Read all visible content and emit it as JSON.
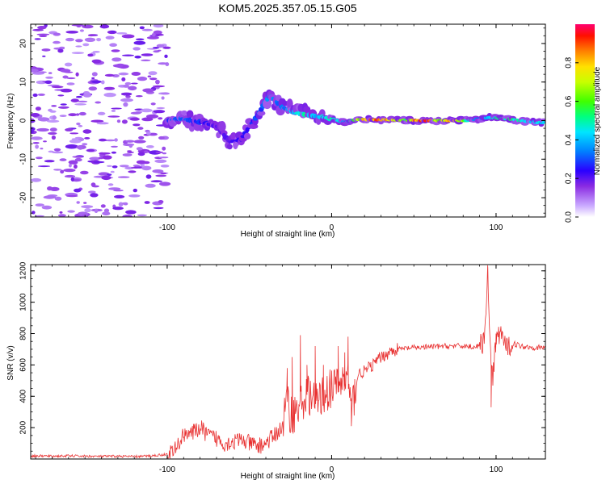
{
  "title": "KOM5.2025.357.05.15.G05",
  "chart_data": [
    {
      "type": "heatmap",
      "title": "KOM5.2025.357.05.15.G05",
      "xlabel": "Height of straight line (km)",
      "ylabel": "Frequency (Hz)",
      "xlim": [
        -183,
        130
      ],
      "ylim": [
        -25,
        25
      ],
      "x_ticks": [
        -100,
        0,
        100
      ],
      "x_tick_labels": [
        "-100",
        "0",
        "100"
      ],
      "y_ticks": [
        -20,
        -10,
        0,
        10,
        20
      ],
      "y_tick_labels": [
        "-20",
        "-10",
        "0",
        "10",
        "20"
      ],
      "colorbar": {
        "label": "Normalized spectral amplitude",
        "range": [
          0,
          1
        ],
        "ticks": [
          0,
          0.2,
          0.4,
          0.6,
          0.8
        ],
        "tick_labels": [
          "0.0",
          "0.2",
          "0.4",
          "0.6",
          "0.8"
        ]
      },
      "ridge": [
        {
          "x": -100,
          "y": 0.0,
          "amp": 0.3
        },
        {
          "x": -92,
          "y": 0.5,
          "amp": 0.35
        },
        {
          "x": -85,
          "y": 0.0,
          "amp": 0.3
        },
        {
          "x": -78,
          "y": -0.5,
          "amp": 0.28
        },
        {
          "x": -70,
          "y": -1.5,
          "amp": 0.22
        },
        {
          "x": -62,
          "y": -5.5,
          "amp": 0.2
        },
        {
          "x": -55,
          "y": -5.0,
          "amp": 0.24
        },
        {
          "x": -50,
          "y": -1.5,
          "amp": 0.28
        },
        {
          "x": -44,
          "y": 2.0,
          "amp": 0.3
        },
        {
          "x": -38,
          "y": 6.5,
          "amp": 0.38
        },
        {
          "x": -30,
          "y": 3.5,
          "amp": 0.35
        },
        {
          "x": -22,
          "y": 2.0,
          "amp": 0.45
        },
        {
          "x": -15,
          "y": 1.5,
          "amp": 0.5
        },
        {
          "x": -8,
          "y": 1.0,
          "amp": 0.4
        },
        {
          "x": 0,
          "y": 0.5,
          "amp": 0.55
        },
        {
          "x": 8,
          "y": -0.5,
          "amp": 0.35
        },
        {
          "x": 15,
          "y": 0.3,
          "amp": 0.65
        },
        {
          "x": 25,
          "y": 0.2,
          "amp": 0.95
        },
        {
          "x": 35,
          "y": 0.2,
          "amp": 0.8
        },
        {
          "x": 45,
          "y": 0.1,
          "amp": 0.6
        },
        {
          "x": 52,
          "y": 0.0,
          "amp": 0.9
        },
        {
          "x": 58,
          "y": 0.0,
          "amp": 0.95
        },
        {
          "x": 65,
          "y": 0.0,
          "amp": 0.65
        },
        {
          "x": 74,
          "y": 0.0,
          "amp": 0.95
        },
        {
          "x": 82,
          "y": 0.0,
          "amp": 0.55
        },
        {
          "x": 90,
          "y": 0.5,
          "amp": 0.3
        },
        {
          "x": 96,
          "y": 0.8,
          "amp": 0.45
        },
        {
          "x": 105,
          "y": 0.5,
          "amp": 0.55
        },
        {
          "x": 115,
          "y": 0.0,
          "amp": 0.5
        },
        {
          "x": 125,
          "y": -0.5,
          "amp": 0.45
        },
        {
          "x": 130,
          "y": -0.5,
          "amp": 0.4
        }
      ]
    },
    {
      "type": "line",
      "xlabel": "Height of straight line (km)",
      "ylabel": "SNR (v/v)",
      "xlim": [
        -183,
        130
      ],
      "ylim": [
        0,
        1240
      ],
      "x_ticks": [
        -100,
        0,
        100
      ],
      "x_tick_labels": [
        "-100",
        "0",
        "100"
      ],
      "y_ticks": [
        200,
        400,
        600,
        800,
        1000,
        1200
      ],
      "y_tick_labels": [
        "200",
        "400",
        "600",
        "800",
        "1000",
        "1200"
      ],
      "series": [
        {
          "name": "SNR",
          "color": "#e83030",
          "points": [
            [
              -183,
              20
            ],
            [
              -170,
              18
            ],
            [
              -160,
              20
            ],
            [
              -150,
              18
            ],
            [
              -140,
              16
            ],
            [
              -130,
              18
            ],
            [
              -120,
              15
            ],
            [
              -110,
              20
            ],
            [
              -100,
              30
            ],
            [
              -95,
              60
            ],
            [
              -92,
              120
            ],
            [
              -88,
              180
            ],
            [
              -85,
              160
            ],
            [
              -80,
              200
            ],
            [
              -75,
              150
            ],
            [
              -70,
              130
            ],
            [
              -65,
              100
            ],
            [
              -60,
              110
            ],
            [
              -55,
              120
            ],
            [
              -50,
              100
            ],
            [
              -45,
              80
            ],
            [
              -40,
              100
            ],
            [
              -35,
              150
            ],
            [
              -30,
              200
            ],
            [
              -27,
              380
            ],
            [
              -25,
              280
            ],
            [
              -22,
              300
            ],
            [
              -18,
              360
            ],
            [
              -14,
              420
            ],
            [
              -10,
              350
            ],
            [
              -6,
              400
            ],
            [
              -2,
              440
            ],
            [
              2,
              460
            ],
            [
              6,
              490
            ],
            [
              10,
              520
            ],
            [
              12,
              300
            ],
            [
              16,
              540
            ],
            [
              20,
              560
            ],
            [
              25,
              600
            ],
            [
              30,
              650
            ],
            [
              35,
              680
            ],
            [
              40,
              700
            ],
            [
              50,
              710
            ],
            [
              60,
              715
            ],
            [
              70,
              720
            ],
            [
              80,
              720
            ],
            [
              88,
              715
            ],
            [
              92,
              740
            ],
            [
              94,
              900
            ],
            [
              95,
              1220
            ],
            [
              96,
              800
            ],
            [
              97,
              600
            ],
            [
              98,
              500
            ],
            [
              100,
              750
            ],
            [
              103,
              820
            ],
            [
              106,
              700
            ],
            [
              110,
              740
            ],
            [
              115,
              720
            ],
            [
              120,
              715
            ],
            [
              125,
              710
            ],
            [
              130,
              710
            ]
          ],
          "spikes": [
            [
              -27,
              580
            ],
            [
              -24,
              650
            ],
            [
              -19,
              790
            ],
            [
              -15,
              600
            ],
            [
              -10,
              720
            ],
            [
              -5,
              600
            ],
            [
              4,
              720
            ],
            [
              8,
              680
            ],
            [
              10,
              780
            ],
            [
              12,
              210
            ],
            [
              95,
              1220
            ],
            [
              97,
              330
            ],
            [
              100,
              800
            ],
            [
              104,
              790
            ]
          ]
        }
      ]
    }
  ]
}
